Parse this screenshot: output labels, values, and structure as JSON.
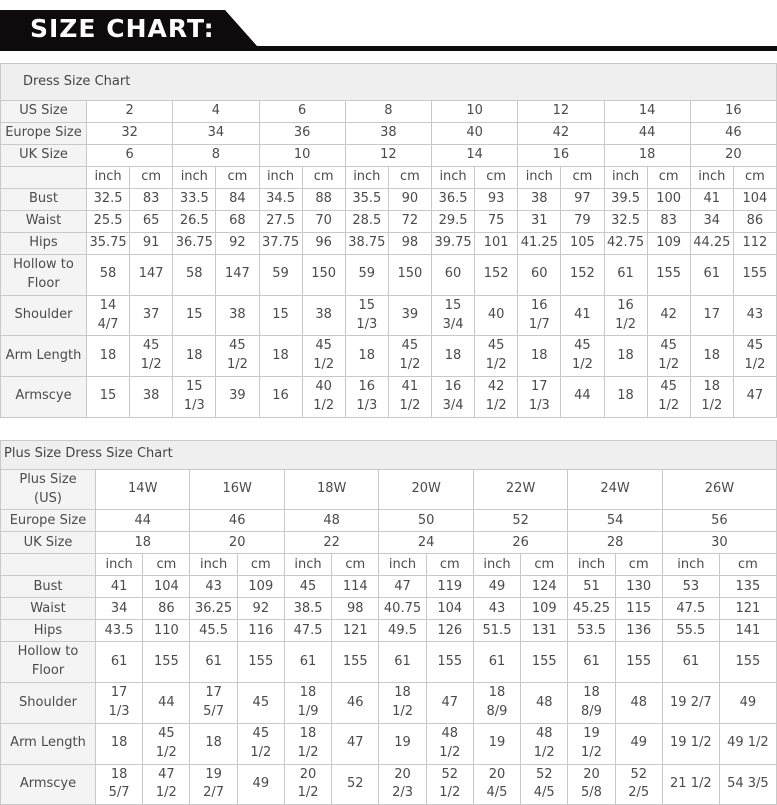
{
  "banner": {
    "title": "SIZE CHART:",
    "bg_color": "#0d0b0c",
    "text_color": "#ffffff"
  },
  "tables": [
    {
      "title": "Dress Size Chart",
      "units": [
        "inch",
        "cm"
      ],
      "size_rows": [
        {
          "label": "US Size",
          "values": [
            "2",
            "4",
            "6",
            "8",
            "10",
            "12",
            "14",
            "16"
          ]
        },
        {
          "label": "Europe Size",
          "values": [
            "32",
            "34",
            "36",
            "38",
            "40",
            "42",
            "44",
            "46"
          ]
        },
        {
          "label": "UK Size",
          "values": [
            "6",
            "8",
            "10",
            "12",
            "14",
            "16",
            "18",
            "20"
          ]
        }
      ],
      "measure_rows": [
        {
          "label": "Bust",
          "values": [
            "32.5",
            "83",
            "33.5",
            "84",
            "34.5",
            "88",
            "35.5",
            "90",
            "36.5",
            "93",
            "38",
            "97",
            "39.5",
            "100",
            "41",
            "104"
          ]
        },
        {
          "label": "Waist",
          "values": [
            "25.5",
            "65",
            "26.5",
            "68",
            "27.5",
            "70",
            "28.5",
            "72",
            "29.5",
            "75",
            "31",
            "79",
            "32.5",
            "83",
            "34",
            "86"
          ]
        },
        {
          "label": "Hips",
          "values": [
            "35.75",
            "91",
            "36.75",
            "92",
            "37.75",
            "96",
            "38.75",
            "98",
            "39.75",
            "101",
            "41.25",
            "105",
            "42.75",
            "109",
            "44.25",
            "112"
          ]
        },
        {
          "label": "Hollow to Floor",
          "values": [
            "58",
            "147",
            "58",
            "147",
            "59",
            "150",
            "59",
            "150",
            "60",
            "152",
            "60",
            "152",
            "61",
            "155",
            "61",
            "155"
          ]
        },
        {
          "label": "Shoulder",
          "values": [
            "14 4/7",
            "37",
            "15",
            "38",
            "15",
            "38",
            "15 1/3",
            "39",
            "15 3/4",
            "40",
            "16 1/7",
            "41",
            "16 1/2",
            "42",
            "17",
            "43"
          ]
        },
        {
          "label": "Arm Length",
          "values": [
            "18",
            "45 1/2",
            "18",
            "45 1/2",
            "18",
            "45 1/2",
            "18",
            "45 1/2",
            "18",
            "45 1/2",
            "18",
            "45 1/2",
            "18",
            "45 1/2",
            "18",
            "45 1/2"
          ]
        },
        {
          "label": "Armscye",
          "values": [
            "15",
            "38",
            "15 1/3",
            "39",
            "16",
            "40 1/2",
            "16 1/3",
            "41 1/2",
            "16 3/4",
            "42 1/2",
            "17 1/3",
            "44",
            "18",
            "45 1/2",
            "18 1/2",
            "47"
          ]
        }
      ]
    },
    {
      "title": "Plus Size Dress Size Chart",
      "units": [
        "inch",
        "cm"
      ],
      "size_rows": [
        {
          "label": "Plus Size (US)",
          "values": [
            "14W",
            "16W",
            "18W",
            "20W",
            "22W",
            "24W",
            "26W"
          ]
        },
        {
          "label": "Europe Size",
          "values": [
            "44",
            "46",
            "48",
            "50",
            "52",
            "54",
            "56"
          ]
        },
        {
          "label": "UK Size",
          "values": [
            "18",
            "20",
            "22",
            "24",
            "26",
            "28",
            "30"
          ]
        }
      ],
      "measure_rows": [
        {
          "label": "Bust",
          "values": [
            "41",
            "104",
            "43",
            "109",
            "45",
            "114",
            "47",
            "119",
            "49",
            "124",
            "51",
            "130",
            "53",
            "135"
          ]
        },
        {
          "label": "Waist",
          "values": [
            "34",
            "86",
            "36.25",
            "92",
            "38.5",
            "98",
            "40.75",
            "104",
            "43",
            "109",
            "45.25",
            "115",
            "47.5",
            "121"
          ]
        },
        {
          "label": "Hips",
          "values": [
            "43.5",
            "110",
            "45.5",
            "116",
            "47.5",
            "121",
            "49.5",
            "126",
            "51.5",
            "131",
            "53.5",
            "136",
            "55.5",
            "141"
          ]
        },
        {
          "label": "Hollow to Floor",
          "values": [
            "61",
            "155",
            "61",
            "155",
            "61",
            "155",
            "61",
            "155",
            "61",
            "155",
            "61",
            "155",
            "61",
            "155"
          ]
        },
        {
          "label": "Shoulder",
          "values": [
            "17 1/3",
            "44",
            "17 5/7",
            "45",
            "18 1/9",
            "46",
            "18 1/2",
            "47",
            "18 8/9",
            "48",
            "18 8/9",
            "48",
            "19 2/7",
            "49"
          ]
        },
        {
          "label": "Arm Length",
          "values": [
            "18",
            "45 1/2",
            "18",
            "45 1/2",
            "18 1/2",
            "47",
            "19",
            "48 1/2",
            "19",
            "48 1/2",
            "19 1/2",
            "49",
            "19 1/2",
            "49 1/2"
          ]
        },
        {
          "label": "Armscye",
          "values": [
            "18 5/7",
            "47 1/2",
            "19 2/7",
            "49",
            "20 1/2",
            "52",
            "20 2/3",
            "52 1/2",
            "20 4/5",
            "52 4/5",
            "20 5/8",
            "52 2/5",
            "21 1/2",
            "54 3/5"
          ]
        }
      ]
    }
  ]
}
